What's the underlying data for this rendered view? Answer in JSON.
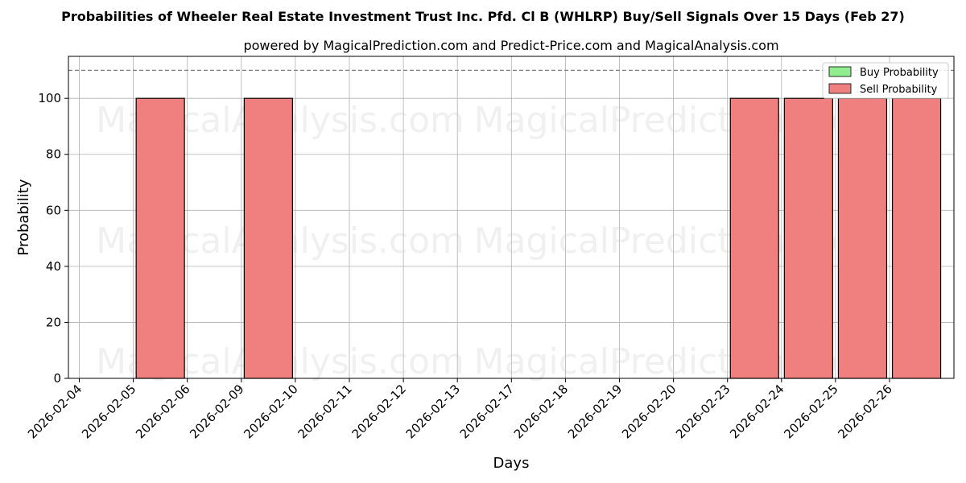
{
  "chart_data": {
    "type": "bar",
    "title": "Probabilities of Wheeler Real Estate Investment Trust Inc. Pfd. Cl B (WHLRP) Buy/Sell Signals Over 15 Days (Feb 27)",
    "subtitle": "powered by MagicalPrediction.com and Predict-Price.com and MagicalAnalysis.com",
    "xlabel": "Days",
    "ylabel": "Probability",
    "ylim": [
      0,
      115
    ],
    "yticks": [
      0,
      20,
      40,
      60,
      80,
      100
    ],
    "reference_line": 110,
    "grid": true,
    "legend_position": "top-right",
    "categories": [
      "2026-02-04",
      "2026-02-05",
      "2026-02-06",
      "2026-02-09",
      "2026-02-10",
      "2026-02-11",
      "2026-02-12",
      "2026-02-13",
      "2026-02-17",
      "2026-02-18",
      "2026-02-19",
      "2026-02-20",
      "2026-02-23",
      "2026-02-24",
      "2026-02-25",
      "2026-02-26"
    ],
    "series": [
      {
        "name": "Buy Probability",
        "color": "#90ee90",
        "values": [
          0,
          0,
          0,
          0,
          0,
          0,
          0,
          0,
          0,
          0,
          0,
          0,
          0,
          0,
          0,
          0
        ]
      },
      {
        "name": "Sell Probability",
        "color": "#f08080",
        "values": [
          0,
          100,
          0,
          100,
          0,
          0,
          0,
          0,
          0,
          0,
          0,
          0,
          100,
          100,
          100,
          100
        ]
      }
    ],
    "watermarks": [
      "MagicalAnalysis.com",
      "MagicalPrediction.com"
    ]
  }
}
